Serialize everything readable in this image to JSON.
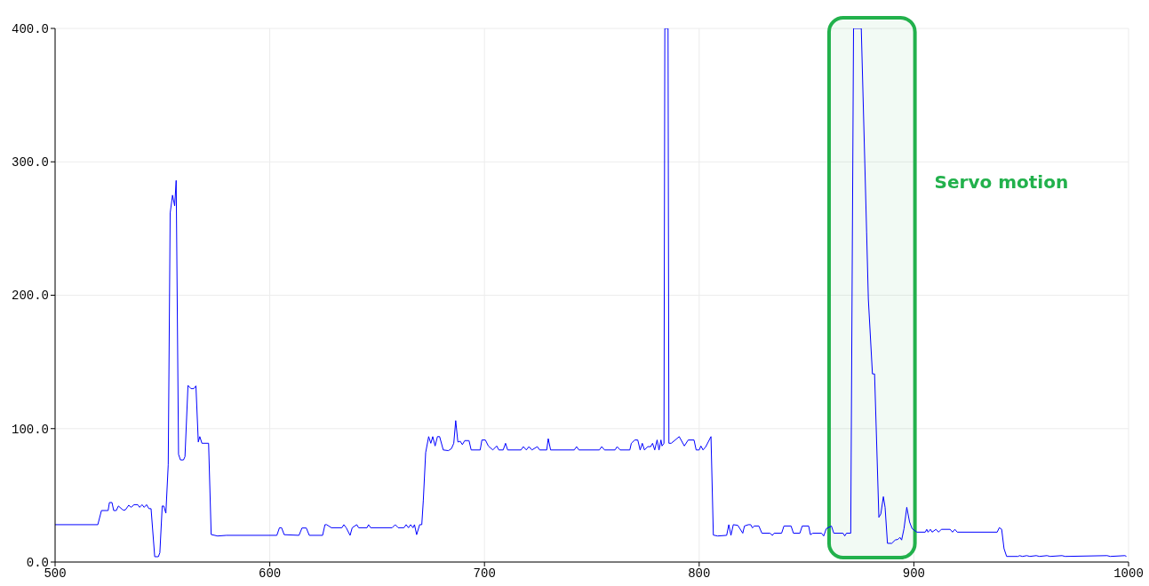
{
  "chart_data": {
    "type": "line",
    "x": [
      500,
      519.9,
      521.6,
      524.7,
      525.3,
      526.5,
      527.3,
      528.5,
      529.5,
      531.6,
      532.7,
      534.3,
      535.4,
      536.8,
      538.5,
      539.4,
      540.5,
      541.5,
      542.6,
      543.7,
      544.7,
      546.4,
      548.1,
      548.8,
      549.9,
      550.6,
      551.6,
      552.7,
      553.6,
      554.7,
      555.7,
      556.4,
      557.5,
      558.4,
      559.8,
      560.5,
      561.9,
      563.3,
      564.6,
      565.6,
      566.7,
      567.4,
      568.4,
      571.5,
      572.7,
      575.7,
      579.8,
      603.3,
      604.5,
      605.5,
      606.7,
      613.6,
      615,
      617,
      618.4,
      624.6,
      625.7,
      626.5,
      628.7,
      633.6,
      634.5,
      635.6,
      637.4,
      638.4,
      640.5,
      641.4,
      645.3,
      646,
      647,
      657,
      658.4,
      659.8,
      662.5,
      663.5,
      664.6,
      665.6,
      666.7,
      667.4,
      668.4,
      669.8,
      670.8,
      671.5,
      672.6,
      674,
      675,
      675.9,
      677,
      678.1,
      679.1,
      680.8,
      683.2,
      684.6,
      685.7,
      686.6,
      687.6,
      688.7,
      689.7,
      690.8,
      692.8,
      693.8,
      698,
      698.8,
      700.4,
      701.8,
      703.9,
      705.7,
      706.7,
      708.7,
      709.8,
      710.8,
      717,
      718.1,
      719.5,
      720.7,
      722.1,
      724.6,
      725.7,
      729,
      729.7,
      730.8,
      741.8,
      742.9,
      744,
      753.5,
      754.6,
      755.9,
      760.8,
      761.8,
      763.2,
      767.7,
      768.4,
      770,
      771.4,
      772.5,
      773.5,
      774.5,
      776,
      777.4,
      778.3,
      779.3,
      780.4,
      781.3,
      782.2,
      782.7,
      783.6,
      784,
      785.5,
      785.9,
      787,
      790.7,
      793.1,
      794.9,
      797.6,
      798.6,
      800,
      800.8,
      801.8,
      803.1,
      805.5,
      806.6,
      808.6,
      812.8,
      813.8,
      814.8,
      815.9,
      818,
      820.3,
      821.1,
      822.9,
      824,
      824.8,
      825.7,
      827.8,
      829.2,
      833,
      834.1,
      834.9,
      838.4,
      839.5,
      842.8,
      843.9,
      846.9,
      848,
      851,
      851.8,
      852.9,
      857,
      858,
      859.2,
      861.6,
      862.7,
      867,
      867.8,
      868.6,
      870.6,
      871.9,
      875.5,
      878,
      878.8,
      880.7,
      881.7,
      883.7,
      884.6,
      885.8,
      886.6,
      887.7,
      889.7,
      891.3,
      892.6,
      893.5,
      894.3,
      895.4,
      896.7,
      898,
      899.2,
      901.4,
      905.3,
      906,
      906.6,
      907.7,
      908.5,
      910.3,
      911.5,
      912.8,
      916.9,
      918,
      919.1,
      920.2,
      938.8,
      939.8,
      940.9,
      942,
      943.2,
      948.5,
      949.2,
      950.6,
      952.6,
      954,
      957,
      958.5,
      962,
      963.5,
      969,
      970.5,
      990,
      991.5,
      998.3,
      999
    ],
    "series": [
      {
        "color": "#0000ff",
        "values": [
          28,
          28,
          38.6,
          38.6,
          44.6,
          44.6,
          38.6,
          38.6,
          42,
          39,
          39,
          42.6,
          41,
          43,
          43,
          41,
          43,
          41,
          43,
          40,
          40,
          4,
          4,
          7,
          42,
          42,
          36.6,
          73,
          261.6,
          275,
          267,
          286,
          80.7,
          76.5,
          76.5,
          79,
          132.4,
          130,
          130,
          132,
          90,
          94,
          89,
          89,
          20.6,
          19.5,
          20,
          20,
          25.7,
          25.7,
          20.5,
          20,
          25.5,
          25.5,
          20,
          20,
          28,
          28,
          25.7,
          25.7,
          28,
          25.7,
          20,
          25.7,
          28,
          25.7,
          25.7,
          28,
          25.7,
          25.7,
          28,
          25.7,
          25.7,
          28,
          25.7,
          28,
          25.7,
          28,
          20.5,
          28,
          28,
          46,
          82,
          94,
          89,
          94,
          87,
          94,
          94,
          84,
          83.5,
          85,
          89,
          106,
          90,
          90.5,
          88,
          91,
          91,
          84,
          84,
          91.5,
          91.5,
          87,
          84,
          87,
          84,
          84,
          89,
          84,
          84,
          86.5,
          84,
          86.5,
          84,
          86.5,
          84,
          84,
          92.5,
          84,
          84,
          86.5,
          84,
          84,
          86.5,
          84,
          84,
          86.5,
          84,
          84,
          89,
          91.5,
          91.5,
          84,
          89,
          84,
          86.5,
          86.5,
          89,
          84,
          91.5,
          84,
          91.5,
          87,
          89,
          400,
          400,
          89,
          89,
          94,
          87,
          91.5,
          91.5,
          84,
          84,
          87,
          84,
          86.5,
          94,
          20.2,
          19.5,
          20,
          28,
          20,
          28,
          27.5,
          21.6,
          27,
          28,
          28,
          25.6,
          27,
          27,
          21.6,
          21.6,
          20,
          21.6,
          21.6,
          27,
          27,
          21.6,
          21.6,
          27,
          27,
          20.5,
          21.6,
          21.6,
          19.5,
          25,
          27,
          21.6,
          21.6,
          19.5,
          21.6,
          21.6,
          400,
          400,
          247,
          197,
          141,
          141,
          33.5,
          36,
          49,
          41,
          14,
          14,
          16.5,
          17,
          18.5,
          16.5,
          25,
          41,
          30,
          25,
          22.4,
          22.4,
          24.5,
          22.4,
          24.5,
          22.4,
          24.5,
          22.4,
          24.5,
          24.5,
          22.4,
          24.5,
          22.4,
          22.4,
          25.8,
          24.5,
          10,
          4.2,
          4.2,
          4.8,
          4.2,
          4.8,
          4.2,
          4.8,
          4.2,
          4.8,
          4.2,
          4.8,
          4.2,
          4.8,
          4.2,
          4.8,
          4.2
        ]
      }
    ],
    "xlim": [
      500,
      1000
    ],
    "xticks": [
      500,
      600,
      700,
      800,
      900,
      1000
    ],
    "ylim": [
      0,
      400
    ],
    "yticks": [
      {
        "value": 0,
        "label": "0.0"
      },
      {
        "value": 100,
        "label": "100.0"
      },
      {
        "value": 200,
        "label": "200.0"
      },
      {
        "value": 300,
        "label": "300.0"
      },
      {
        "value": 400,
        "label": "400.0"
      }
    ],
    "bands": [
      {
        "axis": "x",
        "from": 860.5,
        "to": 900.5,
        "label": "Servo motion",
        "color": "#22b14c"
      }
    ],
    "grid": true,
    "legend": false,
    "marker": "none",
    "line_style": "solid"
  }
}
